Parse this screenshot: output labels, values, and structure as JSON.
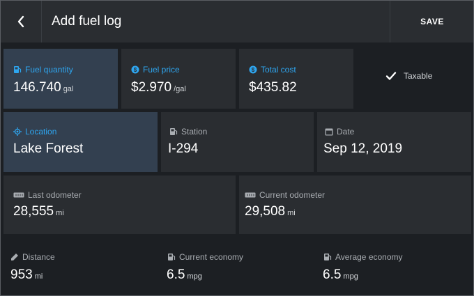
{
  "header": {
    "title": "Add fuel log",
    "save_label": "SAVE"
  },
  "row1": {
    "fuel_quantity": {
      "label": "Fuel quantity",
      "value": "146.740",
      "unit": "gal"
    },
    "fuel_price": {
      "label": "Fuel price",
      "value": "$2.970",
      "unit": "/gal"
    },
    "total_cost": {
      "label": "Total cost",
      "value": "$435.82"
    },
    "taxable": {
      "label": "Taxable",
      "checked": true
    }
  },
  "row2": {
    "location": {
      "label": "Location",
      "value": "Lake Forest"
    },
    "station": {
      "label": "Station",
      "value": "I-294"
    },
    "date": {
      "label": "Date",
      "value": "Sep 12, 2019"
    }
  },
  "row3": {
    "last_odometer": {
      "label": "Last odometer",
      "value": "28,555",
      "unit": "mi"
    },
    "current_odometer": {
      "label": "Current odometer",
      "value": "29,508",
      "unit": "mi"
    }
  },
  "stats": {
    "distance": {
      "label": "Distance",
      "value": "953",
      "unit": "mi"
    },
    "current_economy": {
      "label": "Current economy",
      "value": "6.5",
      "unit": "mpg"
    },
    "average_economy": {
      "label": "Average economy",
      "value": "6.5",
      "unit": "mpg"
    }
  },
  "colors": {
    "accent": "#2ea6f0",
    "card": "#2a2d31",
    "card_active": "#334050",
    "background": "#1c1f23"
  }
}
